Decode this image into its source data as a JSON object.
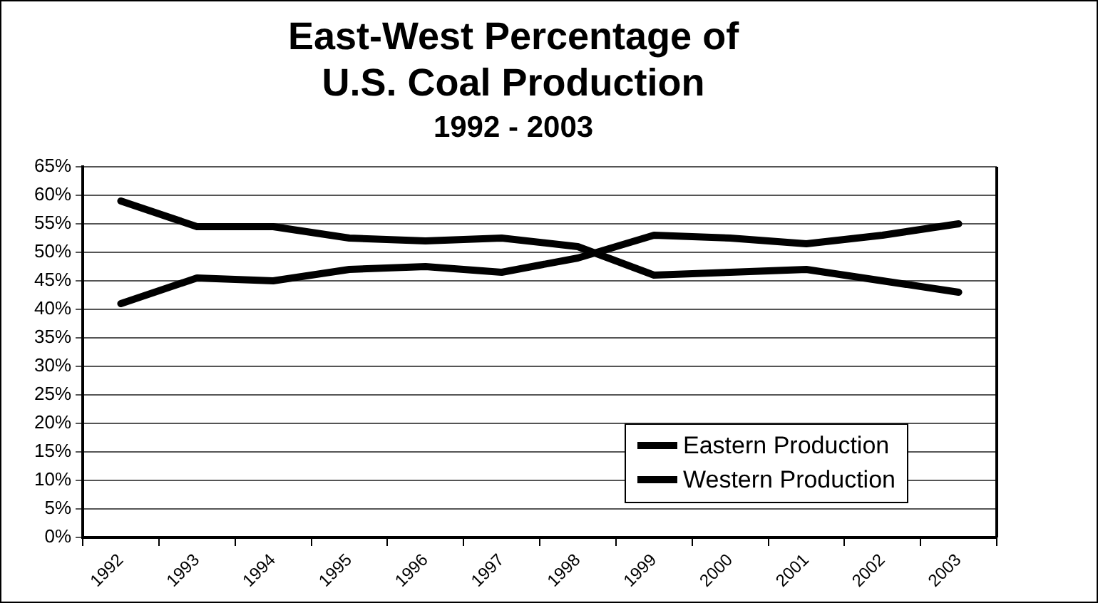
{
  "chart_data": {
    "type": "line",
    "title": "East-West Percentage of U.S. Coal Production",
    "subtitle": "1992 - 2003",
    "categories": [
      "1992",
      "1993",
      "1994",
      "1995",
      "1996",
      "1997",
      "1998",
      "1999",
      "2000",
      "2001",
      "2002",
      "2003"
    ],
    "series": [
      {
        "name": "Eastern Production",
        "color": "#000000",
        "values": [
          59,
          54.5,
          54.5,
          52.5,
          52,
          52.5,
          51,
          46,
          46.5,
          47,
          45,
          43
        ]
      },
      {
        "name": "Western Production",
        "color": "#000000",
        "values": [
          41,
          45.5,
          45,
          47,
          47.5,
          46.5,
          49,
          53,
          52.5,
          51.5,
          53,
          55
        ]
      }
    ],
    "ylim": [
      0,
      65
    ],
    "yticks": [
      {
        "value": 0,
        "label": "0%"
      },
      {
        "value": 5,
        "label": "5%"
      },
      {
        "value": 10,
        "label": "10%"
      },
      {
        "value": 15,
        "label": "15%"
      },
      {
        "value": 20,
        "label": "20%"
      },
      {
        "value": 25,
        "label": "25%"
      },
      {
        "value": 30,
        "label": "30%"
      },
      {
        "value": 35,
        "label": "35%"
      },
      {
        "value": 40,
        "label": "40%"
      },
      {
        "value": 45,
        "label": "45%"
      },
      {
        "value": 50,
        "label": "50%"
      },
      {
        "value": 55,
        "label": "55%"
      },
      {
        "value": 60,
        "label": "60%"
      },
      {
        "value": 65,
        "label": "65%"
      }
    ],
    "grid": "y",
    "legend": "bottom right",
    "marker": "none",
    "line_style": "solid"
  }
}
